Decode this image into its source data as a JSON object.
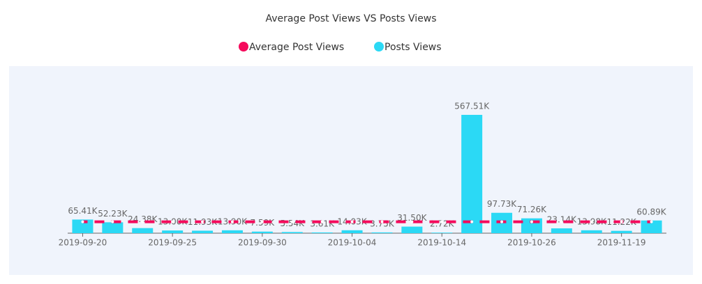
{
  "chart_data": {
    "type": "bar",
    "title": "Average Post Views VS Posts Views",
    "categories": [
      "2019-09-20",
      null,
      null,
      "2019-09-25",
      null,
      null,
      "2019-09-30",
      null,
      null,
      "2019-10-04",
      null,
      null,
      "2019-10-14",
      null,
      null,
      "2019-10-26",
      null,
      null,
      "2019-11-19",
      null
    ],
    "series": [
      {
        "name": "Average Post Views",
        "color": "#f50a5c",
        "type": "line",
        "values": [
          54766,
          54766,
          54766,
          54766,
          54766,
          54766,
          54766,
          54766,
          54766,
          54766,
          54766,
          54766,
          54766,
          54766,
          54766,
          54766,
          54766,
          54766,
          54766,
          54766
        ]
      },
      {
        "name": "Posts Views",
        "color": "#2bd9f5",
        "type": "bar",
        "values": [
          65410,
          52230,
          24380,
          13000,
          11930,
          13900,
          7590,
          5540,
          3610,
          14030,
          3750,
          31500,
          2720,
          567510,
          97730,
          71260,
          23140,
          13980,
          11220,
          60890
        ],
        "value_labels": [
          "65.41K",
          "52.23K",
          "24.38K",
          "13.00K",
          "11.93K",
          "13.90K",
          "7.59K",
          "5.54K",
          "3.61K",
          "14.03K",
          "3.75K",
          "31.50K",
          "2.72K",
          "567.51K",
          "97.73K",
          "71.26K",
          "23.14K",
          "13.98K",
          "11.22K",
          "60.89K"
        ]
      }
    ],
    "ylim": [
      0,
      567510
    ],
    "legend": "top"
  }
}
